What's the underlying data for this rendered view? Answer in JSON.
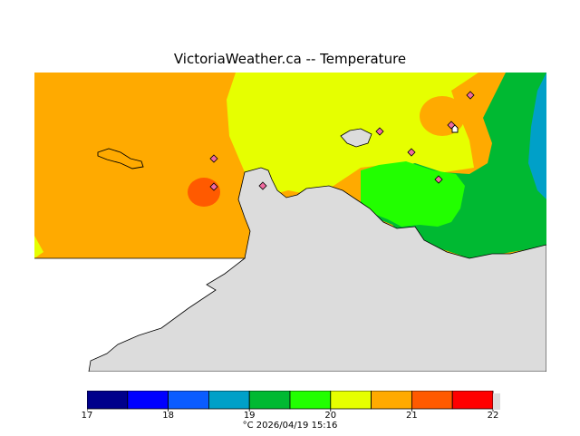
{
  "title": "VictoriaWeather.ca -- Temperature",
  "legend": {
    "colors": [
      "#00008b",
      "#0000ff",
      "#0a5cff",
      "#00a0c8",
      "#00b932",
      "#22ff00",
      "#e6ff00",
      "#ffaa00",
      "#ff5a00",
      "#ff0000"
    ],
    "out_of_range_color": "#dcdcdc",
    "tick_labels": [
      "17",
      "18",
      "19",
      "20",
      "21",
      "22"
    ],
    "unit": "°C",
    "timestamp": "2026/04/19 15:16"
  },
  "map": {
    "land_color": "#dcdcdc",
    "station_marker_color": "#f06aa0"
  }
}
